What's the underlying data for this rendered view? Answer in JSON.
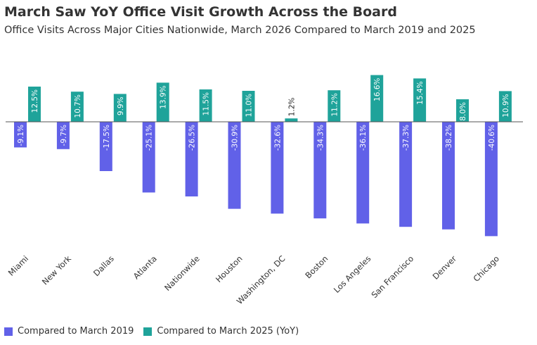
{
  "title": "March Saw YoY Office Visit Growth Across the Board",
  "subtitle": "Office Visits Across Major Cities Nationwide, March 2026 Compared to March 2019 and 2025",
  "colors": {
    "series1": "#6161e8",
    "series2": "#1fa39a"
  },
  "chart_data": {
    "type": "bar",
    "title": "March Saw YoY Office Visit Growth Across the Board",
    "subtitle": "Office Visits Across Major Cities Nationwide, March 2026 Compared to March 2019 and 2025",
    "categories": [
      "Miami",
      "New York",
      "Dallas",
      "Atlanta",
      "Nationwide",
      "Houston",
      "Washington, DC",
      "Boston",
      "Los Angeles",
      "San Francisco",
      "Denver",
      "Chicago"
    ],
    "series": [
      {
        "name": "Compared to March 2019",
        "values": [
          -9.1,
          -9.7,
          -17.5,
          -25.1,
          -26.5,
          -30.9,
          -32.6,
          -34.3,
          -36.1,
          -37.3,
          -38.2,
          -40.6
        ],
        "labels": [
          "-9.1%",
          "-9.7%",
          "-17.5%",
          "-25.1%",
          "-26.5%",
          "-30.9%",
          "-32.6%",
          "-34.3%",
          "-36.1%",
          "-37.3%",
          "-38.2%",
          "-40.6%"
        ]
      },
      {
        "name": "Compared to March 2025 (YoY)",
        "values": [
          12.5,
          10.7,
          9.9,
          13.9,
          11.5,
          11.0,
          1.2,
          11.2,
          16.6,
          15.4,
          8.0,
          10.9
        ],
        "labels": [
          "12.5%",
          "10.7%",
          "9.9%",
          "13.9%",
          "11.5%",
          "11.0%",
          "1.2%",
          "11.2%",
          "16.6%",
          "15.4%",
          "8.0%",
          "10.9%"
        ]
      }
    ],
    "units": "%",
    "xlabel": "",
    "ylabel": "",
    "grid": false,
    "legend": "bottom-left"
  }
}
